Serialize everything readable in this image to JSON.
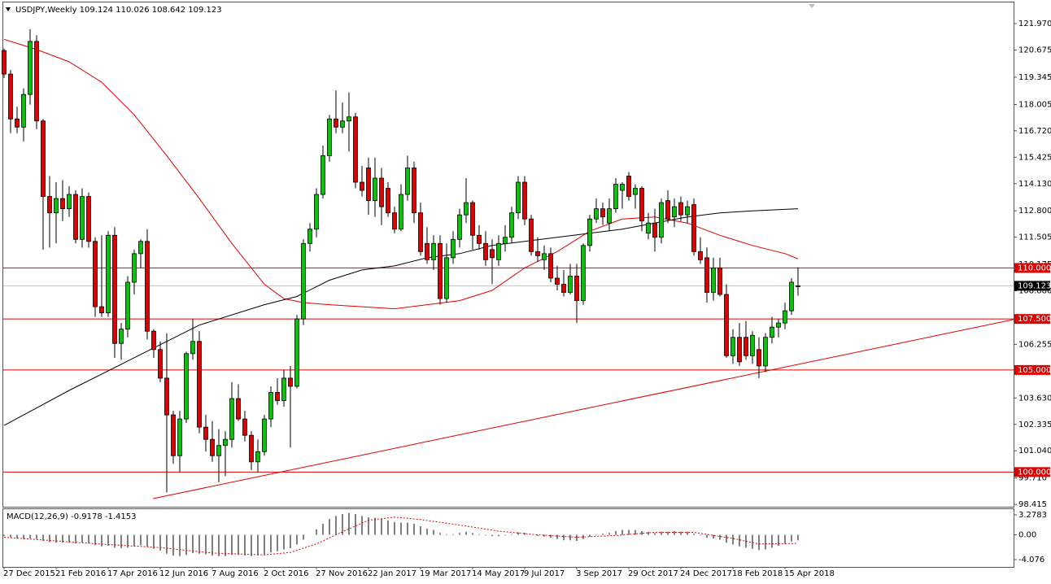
{
  "chart_data": [
    {
      "type": "candlestick",
      "title": "USDJPY,Weekly  109.124 110.026 108.642 109.123",
      "categories": [
        "27 Dec 2015",
        null,
        null,
        null,
        null,
        null,
        null,
        null,
        "21 Feb 2016",
        null,
        null,
        null,
        null,
        null,
        null,
        null,
        "17 Apr 2016",
        null,
        null,
        null,
        null,
        null,
        null,
        null,
        "12 Jun 2016",
        null,
        null,
        null,
        null,
        null,
        null,
        null,
        "7 Aug 2016",
        null,
        null,
        null,
        null,
        null,
        null,
        null,
        "2 Oct 2016",
        null,
        null,
        null,
        null,
        null,
        null,
        null,
        "27 Nov 2016",
        null,
        null,
        null,
        null,
        null,
        null,
        null,
        "22 Jan 2017",
        null,
        null,
        null,
        null,
        null,
        null,
        null,
        "19 Mar 2017",
        null,
        null,
        null,
        null,
        null,
        null,
        null,
        "14 May 2017",
        null,
        null,
        null,
        null,
        null,
        null,
        null,
        "9 Jul 2017",
        null,
        null,
        null,
        null,
        null,
        null,
        null,
        "3 Sep 2017",
        null,
        null,
        null,
        null,
        null,
        null,
        null,
        "29 Oct 2017",
        null,
        null,
        null,
        null,
        null,
        null,
        null,
        "24 Dec 2017",
        null,
        null,
        null,
        null,
        null,
        null,
        null,
        "18 Feb 2018",
        null,
        null,
        null,
        null,
        null,
        null,
        null,
        "15 Apr 2018",
        null,
        null
      ],
      "ohlc": [
        [
          120.65,
          120.75,
          119.3,
          119.5
        ],
        [
          119.5,
          119.7,
          116.6,
          117.3
        ],
        [
          117.3,
          117.9,
          116.6,
          116.9
        ],
        [
          116.9,
          118.8,
          116.2,
          118.5
        ],
        [
          118.5,
          121.7,
          118.0,
          121.1
        ],
        [
          121.1,
          121.4,
          116.8,
          117.2
        ],
        [
          117.2,
          117.3,
          110.9,
          113.5
        ],
        [
          113.5,
          114.5,
          111.0,
          112.7
        ],
        [
          112.7,
          114.2,
          111.2,
          113.4
        ],
        [
          113.4,
          114.3,
          112.3,
          112.9
        ],
        [
          112.9,
          114.0,
          112.5,
          113.6
        ],
        [
          113.6,
          113.8,
          111.2,
          111.4
        ],
        [
          111.4,
          113.9,
          111.0,
          113.5
        ],
        [
          113.5,
          113.7,
          111.0,
          111.3
        ],
        [
          111.3,
          111.5,
          107.6,
          108.1
        ],
        [
          108.1,
          111.6,
          107.6,
          107.8
        ],
        [
          107.8,
          111.8,
          107.6,
          111.6
        ],
        [
          111.6,
          112.0,
          105.6,
          106.3
        ],
        [
          106.3,
          107.3,
          105.5,
          107.0
        ],
        [
          107.0,
          109.6,
          106.6,
          109.3
        ],
        [
          109.3,
          110.9,
          108.7,
          110.7
        ],
        [
          110.7,
          111.4,
          110.0,
          111.3
        ],
        [
          111.3,
          111.9,
          106.5,
          106.9
        ],
        [
          106.9,
          107.0,
          105.6,
          106.0
        ],
        [
          106.0,
          106.4,
          104.4,
          104.6
        ],
        [
          104.6,
          106.8,
          99.0,
          102.8
        ],
        [
          102.8,
          103.0,
          100.4,
          100.8
        ],
        [
          100.8,
          103.0,
          100.0,
          102.6
        ],
        [
          102.6,
          105.9,
          102.4,
          105.8
        ],
        [
          105.8,
          107.5,
          105.5,
          106.4
        ],
        [
          106.4,
          106.9,
          101.9,
          102.2
        ],
        [
          102.2,
          102.8,
          101.0,
          101.6
        ],
        [
          101.6,
          102.5,
          100.5,
          100.8
        ],
        [
          100.8,
          102.1,
          99.5,
          101.3
        ],
        [
          101.3,
          102.0,
          99.8,
          101.6
        ],
        [
          101.6,
          104.4,
          101.2,
          103.6
        ],
        [
          103.6,
          104.3,
          102.5,
          102.6
        ],
        [
          102.6,
          103.0,
          101.5,
          101.8
        ],
        [
          101.8,
          102.0,
          100.1,
          100.5
        ],
        [
          100.5,
          101.6,
          100.0,
          101.0
        ],
        [
          101.0,
          102.8,
          100.8,
          102.6
        ],
        [
          102.6,
          104.2,
          102.2,
          103.9
        ],
        [
          103.9,
          104.6,
          103.3,
          103.5
        ],
        [
          103.5,
          105.0,
          103.2,
          104.6
        ],
        [
          104.6,
          105.2,
          101.2,
          104.2
        ],
        [
          104.2,
          107.7,
          104.1,
          107.5
        ],
        [
          107.5,
          111.4,
          107.2,
          111.2
        ],
        [
          111.2,
          112.2,
          110.8,
          111.9
        ],
        [
          111.9,
          113.9,
          111.5,
          113.6
        ],
        [
          113.6,
          116.0,
          113.4,
          115.5
        ],
        [
          115.5,
          117.5,
          115.2,
          117.3
        ],
        [
          117.3,
          118.7,
          116.6,
          116.9
        ],
        [
          116.9,
          118.1,
          116.6,
          117.2
        ],
        [
          117.2,
          118.6,
          115.7,
          117.4
        ],
        [
          117.4,
          117.6,
          113.9,
          114.2
        ],
        [
          114.2,
          115.0,
          113.5,
          113.8
        ],
        [
          114.9,
          115.4,
          112.6,
          113.3
        ],
        [
          113.3,
          115.4,
          112.5,
          114.4
        ],
        [
          114.4,
          114.9,
          112.1,
          113.0
        ],
        [
          113.9,
          114.2,
          112.5,
          112.7
        ],
        [
          112.7,
          113.0,
          111.7,
          111.9
        ],
        [
          111.9,
          114.1,
          111.8,
          113.6
        ],
        [
          113.6,
          115.5,
          113.3,
          114.9
        ],
        [
          114.9,
          115.2,
          112.2,
          112.7
        ],
        [
          112.7,
          113.2,
          110.6,
          110.8
        ],
        [
          111.2,
          112.0,
          110.2,
          110.4
        ],
        [
          110.4,
          111.6,
          109.9,
          111.2
        ],
        [
          111.2,
          111.6,
          108.2,
          108.5
        ],
        [
          108.5,
          111.2,
          108.3,
          110.5
        ],
        [
          110.5,
          111.8,
          110.2,
          111.4
        ],
        [
          111.4,
          112.9,
          111.0,
          112.6
        ],
        [
          112.6,
          114.4,
          112.2,
          113.2
        ],
        [
          113.2,
          113.3,
          110.9,
          111.6
        ],
        [
          111.6,
          112.1,
          110.9,
          111.2
        ],
        [
          111.2,
          111.8,
          110.1,
          110.4
        ],
        [
          110.9,
          111.4,
          109.2,
          110.5
        ],
        [
          110.4,
          111.6,
          110.1,
          111.2
        ],
        [
          111.2,
          112.1,
          110.8,
          111.5
        ],
        [
          111.5,
          113.0,
          111.2,
          112.7
        ],
        [
          112.7,
          114.5,
          112.4,
          114.2
        ],
        [
          114.2,
          114.5,
          112.1,
          112.4
        ],
        [
          112.4,
          112.6,
          110.6,
          110.8
        ],
        [
          110.8,
          111.5,
          110.3,
          110.6
        ],
        [
          110.4,
          111.1,
          109.9,
          110.7
        ],
        [
          110.7,
          111.0,
          109.3,
          109.5
        ],
        [
          109.5,
          110.1,
          108.9,
          109.2
        ],
        [
          109.2,
          109.9,
          108.6,
          108.8
        ],
        [
          108.8,
          110.2,
          108.7,
          109.6
        ],
        [
          109.6,
          110.2,
          107.3,
          108.4
        ],
        [
          108.4,
          111.2,
          108.2,
          111.1
        ],
        [
          111.1,
          112.6,
          110.8,
          112.4
        ],
        [
          112.4,
          113.4,
          112.2,
          112.9
        ],
        [
          112.9,
          113.2,
          112.1,
          112.5
        ],
        [
          112.2,
          113.4,
          111.8,
          112.9
        ],
        [
          112.9,
          114.4,
          112.7,
          114.1
        ],
        [
          113.8,
          114.2,
          112.9,
          114.1
        ],
        [
          114.5,
          114.7,
          113.3,
          113.5
        ],
        [
          113.6,
          114.1,
          112.9,
          113.9
        ],
        [
          113.9,
          114.0,
          111.8,
          112.3
        ],
        [
          111.7,
          112.7,
          111.4,
          112.2
        ],
        [
          112.2,
          112.9,
          110.8,
          111.5
        ],
        [
          111.5,
          113.4,
          111.2,
          113.2
        ],
        [
          113.3,
          113.8,
          112.2,
          112.4
        ],
        [
          112.5,
          113.4,
          112.0,
          113.0
        ],
        [
          113.2,
          113.5,
          112.3,
          112.6
        ],
        [
          112.6,
          113.3,
          112.2,
          113.0
        ],
        [
          113.1,
          113.4,
          110.6,
          110.8
        ],
        [
          110.8,
          111.5,
          110.2,
          110.4
        ],
        [
          110.5,
          111.0,
          108.3,
          108.8
        ],
        [
          108.8,
          110.5,
          108.4,
          110.0
        ],
        [
          110.0,
          110.5,
          108.6,
          108.7
        ],
        [
          108.7,
          109.2,
          105.6,
          105.7
        ],
        [
          105.7,
          107.0,
          105.3,
          106.6
        ],
        [
          106.6,
          107.3,
          105.2,
          105.4
        ],
        [
          106.6,
          107.4,
          105.5,
          105.7
        ],
        [
          105.7,
          106.9,
          105.3,
          106.7
        ],
        [
          106.0,
          106.6,
          104.6,
          105.2
        ],
        [
          105.2,
          106.8,
          104.9,
          106.6
        ],
        [
          106.6,
          107.6,
          106.3,
          107.1
        ],
        [
          107.1,
          107.5,
          106.6,
          107.3
        ],
        [
          107.3,
          108.3,
          107.0,
          107.9
        ],
        [
          107.9,
          109.5,
          107.7,
          109.3
        ],
        [
          109.124,
          110.026,
          108.642,
          109.123
        ]
      ],
      "up_color": "#00c800",
      "down_color": "#e00000",
      "ylim": [
        98.34,
        122.49
      ],
      "yticks": [
        98.415,
        {
          "value": 99.71,
          "label": "99.710"
        },
        {
          "value": 101.04,
          "label": "101.040"
        },
        102.335,
        {
          "value": 103.63,
          "label": "103.630"
        },
        106.255,
        {
          "value": 108.88,
          "label": "108.880"
        },
        110.175,
        111.505,
        {
          "value": 112.8,
          "label": "112.800"
        },
        {
          "value": 114.13,
          "label": "114.130"
        },
        115.425,
        {
          "value": 116.72,
          "label": "116.720"
        },
        118.005,
        119.345,
        120.675,
        {
          "value": 121.97,
          "label": "121.970"
        }
      ],
      "lines": [
        {
          "color": "#e00000",
          "x": [
            0,
            5,
            10,
            15,
            20,
            25,
            30,
            35,
            40,
            43,
            46,
            50,
            55,
            60,
            65,
            70,
            75,
            80,
            85,
            90,
            95,
            100,
            105,
            110,
            115,
            120,
            122
          ],
          "values": [
            121.2,
            120.7,
            120.1,
            119.1,
            117.5,
            115.5,
            113.4,
            111.2,
            109.2,
            108.5,
            108.3,
            108.2,
            108.1,
            108.0,
            108.2,
            108.4,
            108.9,
            110.0,
            110.8,
            111.8,
            112.4,
            112.5,
            112.2,
            111.6,
            111.1,
            110.7,
            110.45
          ]
        },
        {
          "color": "#000000",
          "x": [
            0,
            10,
            20,
            30,
            40,
            45,
            50,
            55,
            60,
            65,
            70,
            75,
            80,
            85,
            90,
            95,
            100,
            105,
            110,
            115,
            122
          ],
          "values": [
            102.28,
            104.0,
            105.6,
            107.2,
            108.2,
            108.6,
            109.4,
            109.9,
            110.1,
            110.5,
            110.7,
            111.1,
            111.3,
            111.5,
            111.7,
            111.9,
            112.2,
            112.5,
            112.7,
            112.8,
            112.9
          ]
        }
      ],
      "trendline": {
        "color": "#e00000",
        "x": [
          22.9,
          155.1
        ],
        "values": [
          98.7,
          107.47
        ]
      },
      "levels": [
        {
          "value": 110,
          "label": "110.000"
        },
        {
          "value": 107.5,
          "label": "107.500"
        },
        {
          "value": 105,
          "label": "105.000"
        },
        {
          "value": 100,
          "label": "100.000"
        }
      ],
      "level_color": "#e00000",
      "current": {
        "value": 109.123,
        "label": "109.123"
      }
    },
    {
      "type": "macd",
      "title": "MACD(12,26,9) -0.9178 -1.4153",
      "values": [
        -0.2,
        -0.4,
        -0.6,
        -0.7,
        -0.6,
        -0.7,
        -1.0,
        -1.2,
        -1.3,
        -1.3,
        -1.3,
        -1.4,
        -1.3,
        -1.4,
        -1.7,
        -1.9,
        -1.8,
        -2.1,
        -2.2,
        -2.1,
        -1.9,
        -1.7,
        -2.0,
        -2.3,
        -2.6,
        -3.1,
        -3.4,
        -3.5,
        -3.3,
        -3.0,
        -3.1,
        -3.2,
        -3.4,
        -3.5,
        -3.5,
        -3.3,
        -3.3,
        -3.4,
        -3.5,
        -3.4,
        -3.2,
        -2.9,
        -2.7,
        -2.4,
        -2.2,
        -1.6,
        -0.8,
        0.0,
        0.9,
        1.8,
        2.6,
        3.1,
        3.4,
        3.6,
        3.4,
        3.1,
        2.9,
        2.8,
        2.6,
        2.4,
        2.1,
        2.0,
        2.0,
        1.8,
        1.4,
        1.0,
        0.8,
        0.3,
        0.1,
        0.1,
        0.3,
        0.5,
        0.3,
        0.1,
        -0.1,
        -0.2,
        -0.2,
        -0.1,
        0.1,
        0.4,
        0.3,
        0.0,
        -0.2,
        -0.3,
        -0.5,
        -0.7,
        -0.9,
        -0.9,
        -1.0,
        -0.7,
        -0.3,
        0.1,
        0.2,
        0.3,
        0.6,
        0.8,
        0.8,
        0.8,
        0.6,
        0.5,
        0.3,
        0.5,
        0.5,
        0.6,
        0.5,
        0.5,
        0.2,
        -0.1,
        -0.5,
        -0.6,
        -0.8,
        -1.3,
        -1.6,
        -1.9,
        -2.1,
        -2.3,
        -2.5,
        -2.4,
        -2.1,
        -1.8,
        -1.5,
        -1.1,
        -0.9178
      ],
      "signal": {
        "color": "#e00000",
        "x": [
          0,
          8,
          16,
          24,
          32,
          40,
          44,
          48,
          52,
          56,
          60,
          64,
          70,
          76,
          82,
          88,
          94,
          100,
          106,
          112,
          116,
          122
        ],
        "values": [
          -0.4,
          -1.0,
          -1.6,
          -2.1,
          -3.0,
          -3.3,
          -2.9,
          -1.5,
          0.5,
          2.4,
          2.9,
          2.5,
          1.6,
          0.6,
          0.0,
          -0.4,
          -0.1,
          0.4,
          0.4,
          -0.6,
          -1.5,
          -1.4153
        ]
      },
      "ylim": [
        -5.28,
        4.08
      ],
      "yticks": [
        3.2783,
        {
          "value": 0,
          "label": "0.00"
        },
        -4.076
      ]
    }
  ]
}
